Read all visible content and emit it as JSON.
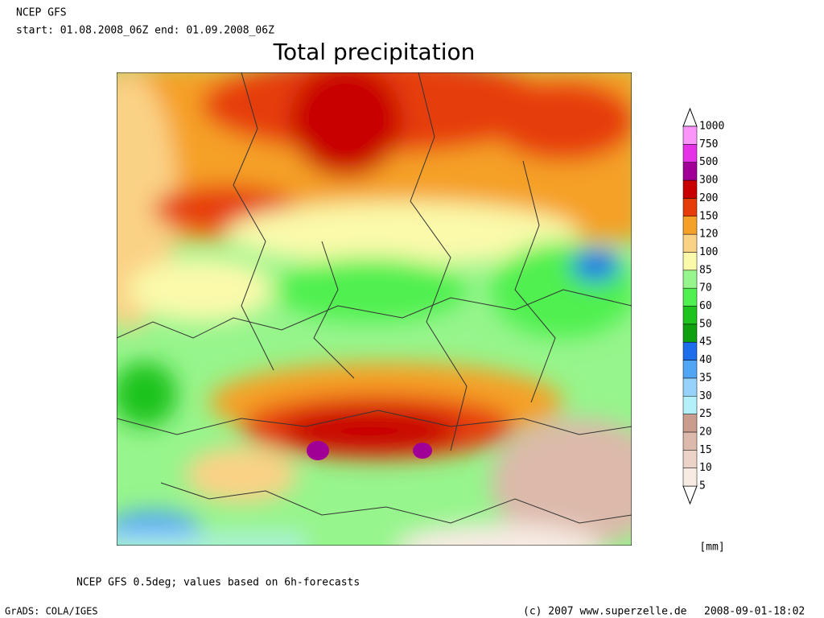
{
  "header": {
    "model": "NCEP GFS",
    "period": "start: 01.08.2008_06Z end: 01.09.2008_06Z"
  },
  "title": "Total precipitation",
  "legend": {
    "levels": [
      5,
      10,
      15,
      20,
      25,
      30,
      35,
      40,
      45,
      50,
      60,
      70,
      85,
      100,
      120,
      150,
      200,
      300,
      500,
      750,
      1000
    ],
    "colors": [
      "#f7ebe3",
      "#ecd3c8",
      "#dcb9aa",
      "#c99c8e",
      "#b4f0fa",
      "#96d2fa",
      "#50a5f5",
      "#1e6eeb",
      "#0fa00f",
      "#1ec31e",
      "#50f050",
      "#96f58c",
      "#fafaaa",
      "#fad286",
      "#f5a028",
      "#e63c0a",
      "#c80000",
      "#a00096",
      "#e632e6",
      "#fa96fa"
    ],
    "unit": "[mm]"
  },
  "footer": {
    "note": "NCEP GFS 0.5deg; values based on 6h-forecasts",
    "software": "GrADS: COLA/IGES",
    "copyright": "(c) 2007 www.superzelle.de",
    "timestamp": "2008-09-01-18:02"
  }
}
